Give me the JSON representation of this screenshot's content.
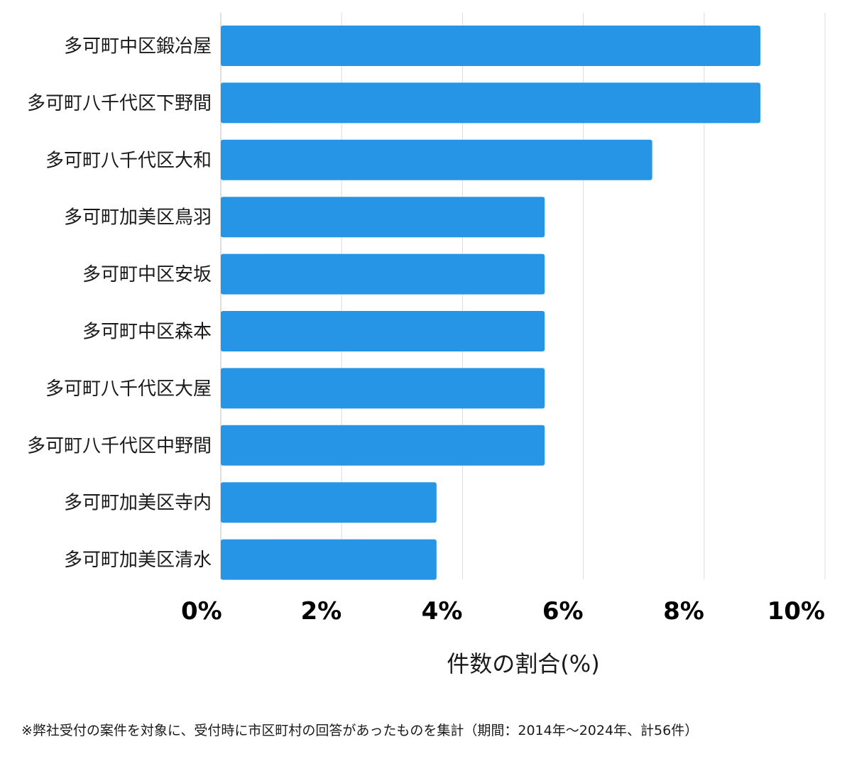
{
  "chart_data": {
    "type": "bar",
    "orientation": "horizontal",
    "categories": [
      "多可町中区鍛冶屋",
      "多可町八千代区下野間",
      "多可町八千代区大和",
      "多可町加美区鳥羽",
      "多可町中区安坂",
      "多可町中区森本",
      "多可町八千代区大屋",
      "多可町八千代区中野間",
      "多可町加美区寺内",
      "多可町加美区清水"
    ],
    "values": [
      8.93,
      8.93,
      7.14,
      5.36,
      5.36,
      5.36,
      5.36,
      5.36,
      3.57,
      3.57
    ],
    "xlim": [
      0,
      10
    ],
    "xticks": [
      0,
      2,
      4,
      6,
      8,
      10
    ],
    "xtick_labels": [
      "0%",
      "2%",
      "4%",
      "6%",
      "8%",
      "10%"
    ],
    "xlabel": "件数の割合(%)",
    "grid": true,
    "bar_color": "#2695e6"
  },
  "footnote": "※弊社受付の案件を対象に、受付時に市区町村の回答があったものを集計（期間：2014年～2024年、計56件）"
}
